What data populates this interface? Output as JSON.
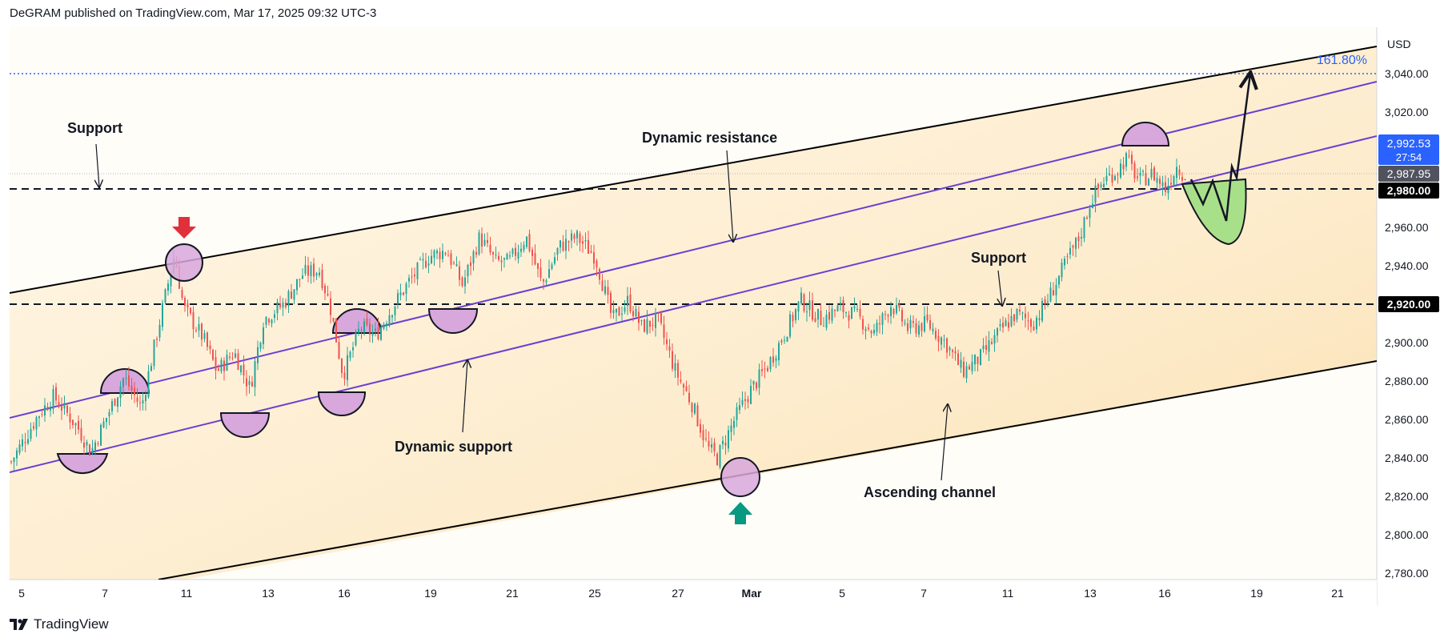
{
  "header": {
    "published": "DeGRAM published on TradingView.com, Mar 17, 2025 09:32 UTC-3"
  },
  "footer": {
    "brand": "TradingView"
  },
  "chart_data": {
    "type": "candlestick",
    "currency": "USD",
    "x_ticks": [
      "5",
      "7",
      "11",
      "13",
      "16",
      "19",
      "21",
      "25",
      "27",
      "Mar",
      "5",
      "7",
      "11",
      "13",
      "16",
      "19",
      "21"
    ],
    "y_ticks": [
      2780,
      2800,
      2820,
      2840,
      2860,
      2880,
      2900,
      2920,
      2940,
      2960,
      2980,
      3000,
      3020,
      3040
    ],
    "y_tick_labels": [
      "2,780.00",
      "2,800.00",
      "2,820.00",
      "2,840.00",
      "2,860.00",
      "2,880.00",
      "2,900.00",
      "2,920.00",
      "2,940.00",
      "2,960.00",
      "2,980.00",
      "3,000.00",
      "3,020.00",
      "3,040.00"
    ],
    "ylim": [
      2778,
      3052
    ],
    "price_path": [
      [
        0,
        2838
      ],
      [
        2,
        2862
      ],
      [
        3.2,
        2872
      ],
      [
        5,
        2856
      ],
      [
        6,
        2843
      ],
      [
        7.5,
        2866
      ],
      [
        8.5,
        2882
      ],
      [
        9.8,
        2866
      ],
      [
        11,
        2905
      ],
      [
        12.3,
        2946
      ],
      [
        13,
        2918
      ],
      [
        14.5,
        2902
      ],
      [
        15.5,
        2885
      ],
      [
        16.8,
        2895
      ],
      [
        18,
        2876
      ],
      [
        19,
        2912
      ],
      [
        20.5,
        2920
      ],
      [
        22,
        2936
      ],
      [
        23.2,
        2938
      ],
      [
        24,
        2920
      ],
      [
        25,
        2883
      ],
      [
        26.3,
        2908
      ],
      [
        27.5,
        2904
      ],
      [
        28.7,
        2918
      ],
      [
        30,
        2932
      ],
      [
        31.5,
        2945
      ],
      [
        32.8,
        2948
      ],
      [
        34,
        2930
      ],
      [
        35.3,
        2955
      ],
      [
        36.5,
        2942
      ],
      [
        37.5,
        2942
      ],
      [
        38.8,
        2955
      ],
      [
        40,
        2930
      ],
      [
        41.3,
        2950
      ],
      [
        42.6,
        2955
      ],
      [
        44,
        2945
      ],
      [
        45.3,
        2912
      ],
      [
        46.5,
        2922
      ],
      [
        47.5,
        2908
      ],
      [
        48.7,
        2912
      ],
      [
        50,
        2886
      ],
      [
        51.3,
        2868
      ],
      [
        52.5,
        2845
      ],
      [
        53.2,
        2840
      ],
      [
        54.5,
        2860
      ],
      [
        55.7,
        2875
      ],
      [
        57,
        2888
      ],
      [
        58.3,
        2905
      ],
      [
        59.5,
        2922
      ],
      [
        61,
        2912
      ],
      [
        62.4,
        2918
      ],
      [
        63.7,
        2914
      ],
      [
        65,
        2905
      ],
      [
        66.3,
        2920
      ],
      [
        67.6,
        2907
      ],
      [
        69,
        2910
      ],
      [
        70.4,
        2900
      ],
      [
        71.7,
        2885
      ],
      [
        73,
        2892
      ],
      [
        74.4,
        2905
      ],
      [
        75.7,
        2915
      ],
      [
        77,
        2910
      ],
      [
        78.3,
        2925
      ],
      [
        79.5,
        2942
      ],
      [
        80.5,
        2955
      ],
      [
        81.4,
        2975
      ],
      [
        82.4,
        2985
      ],
      [
        83.4,
        2990
      ],
      [
        84,
        2996
      ],
      [
        85,
        2984
      ],
      [
        86,
        2988
      ],
      [
        87,
        2980
      ],
      [
        87.8,
        2992
      ],
      [
        88.6,
        2986
      ]
    ],
    "price_axis_labels": [
      {
        "price": "2,992.53",
        "sub": "27:54",
        "style": "blue"
      },
      {
        "price": "2,987.95",
        "style": "dark"
      },
      {
        "price": "2,980.00",
        "style": "black"
      },
      {
        "price": "2,920.00",
        "style": "black"
      }
    ],
    "fib_label": "161.80%",
    "annotations": {
      "support_left": "Support",
      "dynamic_resistance": "Dynamic resistance",
      "dynamic_support": "Dynamic support",
      "support_right": "Support",
      "ascending_channel": "Ascending channel"
    },
    "colors": {
      "up": "#26a69a",
      "down": "#ef5350",
      "channel": "#000000",
      "dynamic": "#6a3fd1",
      "circle": "#d8a7dc",
      "green_shape": "#a8e08a",
      "fib": "#2962ff",
      "red_arrow": "#e0303a",
      "green_arrow": "#089981",
      "band": "#fde9c3"
    }
  }
}
